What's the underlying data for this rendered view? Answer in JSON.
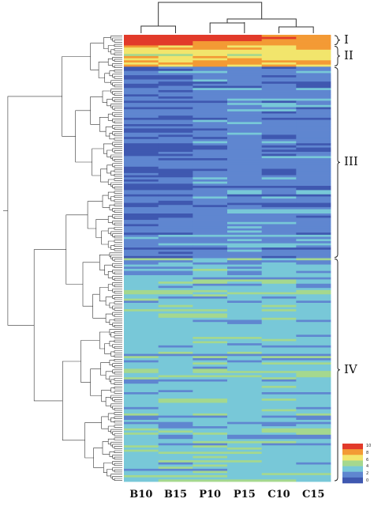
{
  "chart_data": {
    "type": "heatmap",
    "columns": [
      "B10",
      "B15",
      "P10",
      "P15",
      "C10",
      "C15"
    ],
    "color_scale": {
      "min": 0,
      "max": 10,
      "ticks": [
        "10",
        "8",
        "6",
        "4",
        "2",
        "0"
      ],
      "colors": [
        "#3f58b0",
        "#5f86d0",
        "#78c8d8",
        "#a5d88e",
        "#f2e56c",
        "#f39a35",
        "#e23a2a"
      ]
    },
    "clusters": [
      {
        "label": "I",
        "rows": 5,
        "means": [
          10.0,
          10.0,
          8.6,
          8.6,
          8.4,
          8.2
        ]
      },
      {
        "label": "II",
        "rows": 10,
        "means": [
          7.0,
          7.0,
          7.4,
          7.2,
          7.3,
          7.2
        ]
      },
      {
        "label": "III",
        "rows": 90,
        "means": [
          1.1,
          1.1,
          1.7,
          1.9,
          1.5,
          1.6
        ]
      },
      {
        "label": "IV",
        "rows": 105,
        "means": [
          3.3,
          3.3,
          3.5,
          3.2,
          3.3,
          3.1
        ]
      }
    ],
    "legend": "bottom-right"
  }
}
